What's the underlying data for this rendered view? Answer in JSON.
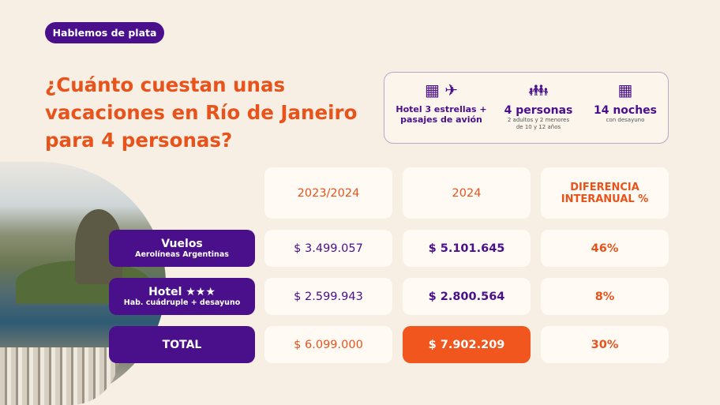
{
  "badge": "Hablemos de plata",
  "title": "¿Cuánto cuestan unas vacaciones en Río de Janeiro para 4 personas?",
  "info": [
    {
      "icon": "hotel-plane-icon",
      "title": "Hotel 3 estrellas + pasajes de avión",
      "sub": ""
    },
    {
      "icon": "family-icon",
      "title": "4 personas",
      "sub": "2 adultos y 2 menores de 10 y 12 años"
    },
    {
      "icon": "calendar-icon",
      "title": "14 noches",
      "sub": "con desayuno"
    }
  ],
  "table": {
    "headers": [
      "2023/2024",
      "2024",
      "DIFERENCIA INTERANUAL %"
    ],
    "rows": [
      {
        "label": "Vuelos",
        "sub": "Aerolíneas Argentinas",
        "v1": "$ 3.499.057",
        "v2": "$ 5.101.645",
        "diff": "46%"
      },
      {
        "label": "Hotel ★★★",
        "sub": "Hab. cuádruple + desayuno",
        "v1": "$ 2.599.943",
        "v2": "$ 2.800.564",
        "diff": "8%"
      },
      {
        "label": "TOTAL",
        "sub": "",
        "v1": "$ 6.099.000",
        "v2": "$ 7.902.209",
        "diff": "30%"
      }
    ]
  },
  "colors": {
    "purple": "#4a0f8a",
    "orange": "#e8531c"
  }
}
